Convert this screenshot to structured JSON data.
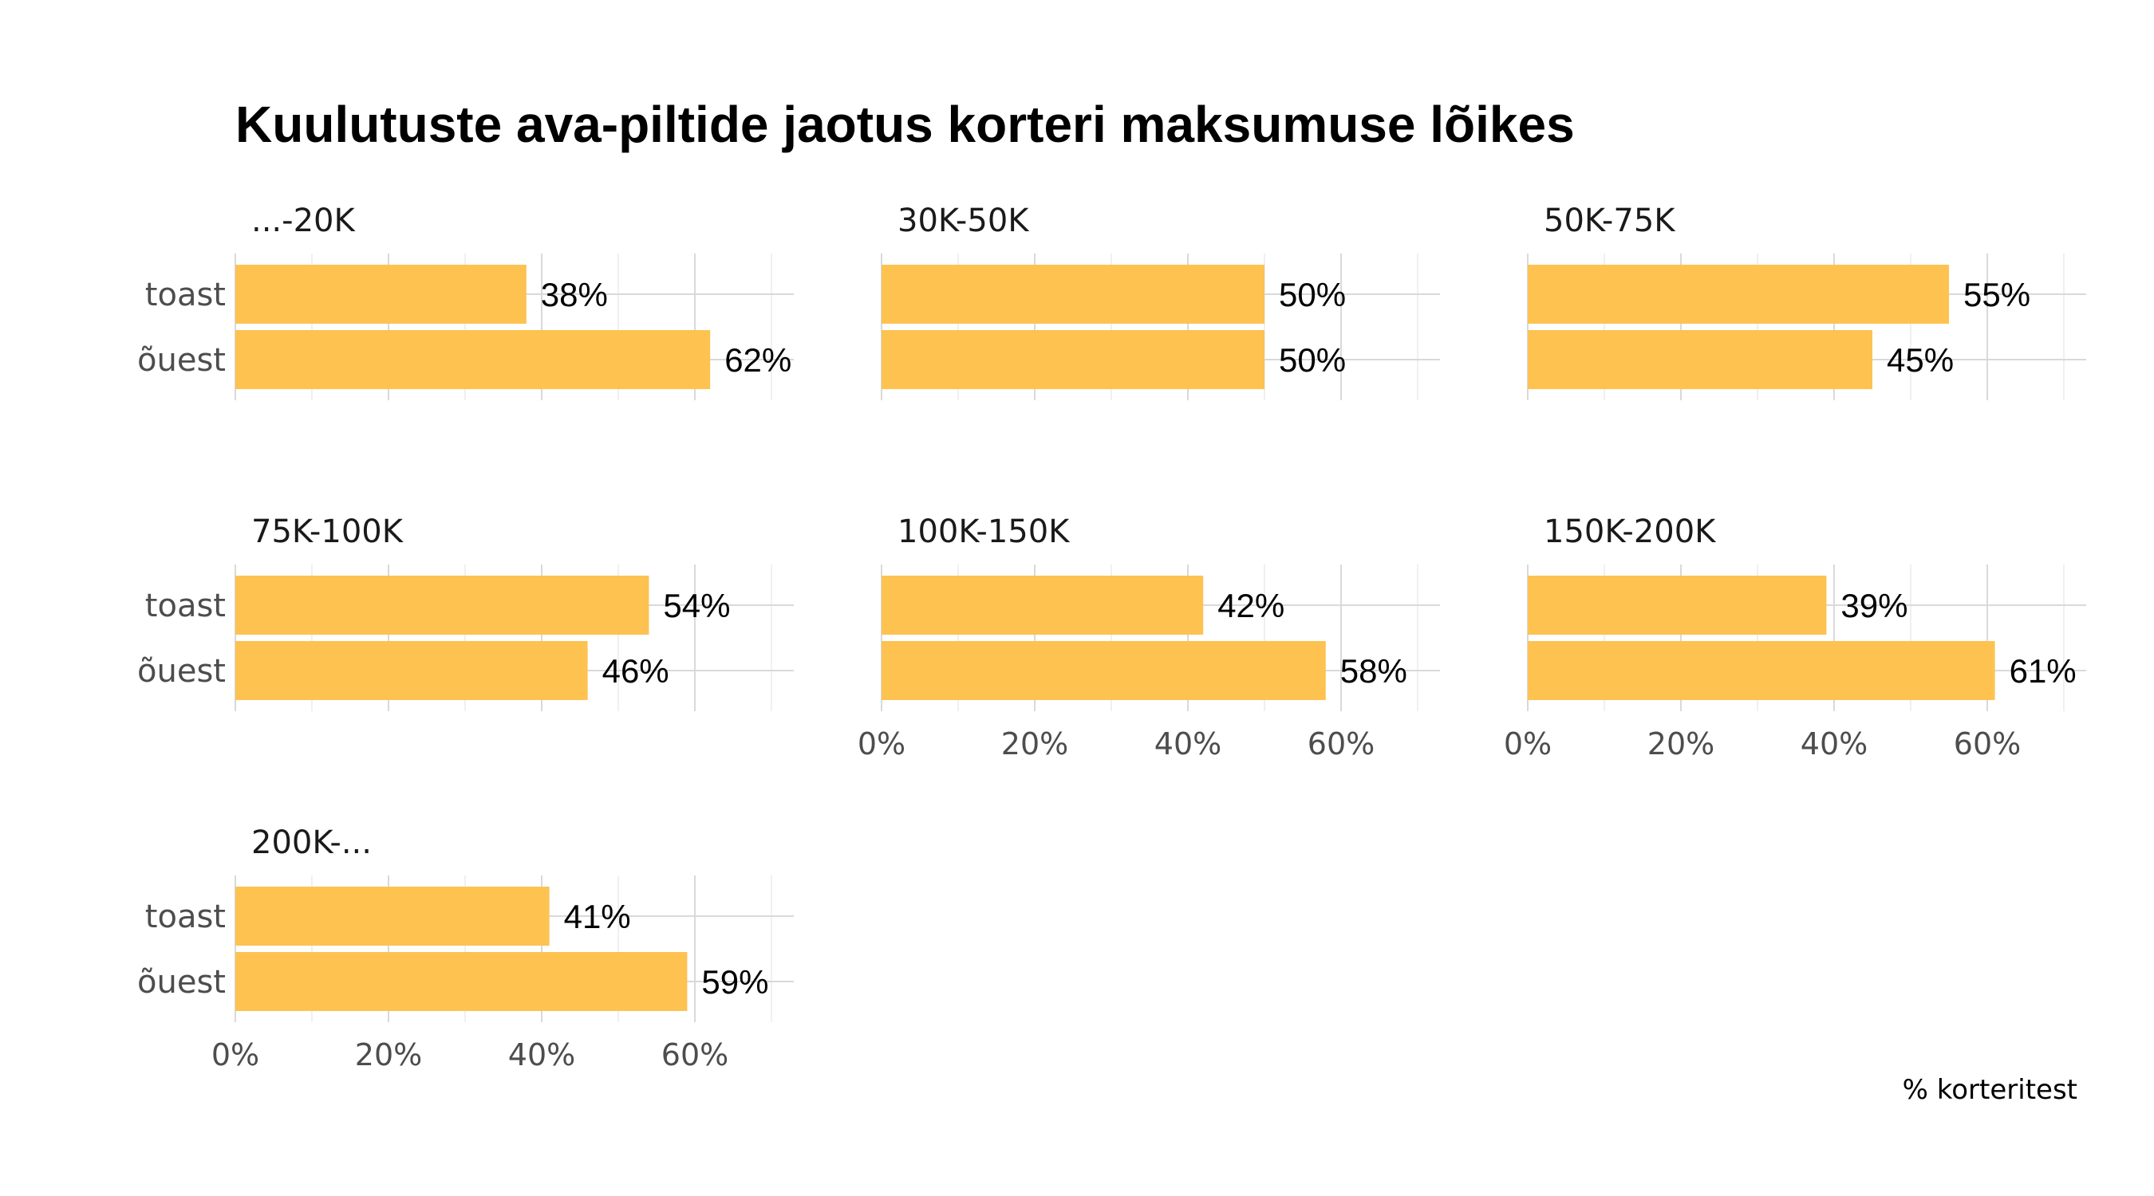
{
  "chart_data": {
    "type": "bar",
    "orientation": "horizontal",
    "title": "Kuulutuste ava-piltide jaotus korteri maksumuse lõikes",
    "caption": "% korteritest",
    "categories": [
      "toast",
      "õuest"
    ],
    "bar_color": "#FDC250",
    "xlim": [
      0,
      70
    ],
    "x_ticks": [
      0,
      20,
      40,
      60
    ],
    "x_tick_labels": [
      "0%",
      "20%",
      "40%",
      "60%"
    ],
    "grid": true,
    "panels": [
      {
        "label": "...-20K",
        "values": [
          38,
          62
        ],
        "value_labels": [
          "38%",
          "62%"
        ]
      },
      {
        "label": "30K-50K",
        "values": [
          50,
          50
        ],
        "value_labels": [
          "50%",
          "50%"
        ]
      },
      {
        "label": "50K-75K",
        "values": [
          55,
          45
        ],
        "value_labels": [
          "55%",
          "45%"
        ]
      },
      {
        "label": "75K-100K",
        "values": [
          54,
          46
        ],
        "value_labels": [
          "54%",
          "46%"
        ]
      },
      {
        "label": "100K-150K",
        "values": [
          42,
          58
        ],
        "value_labels": [
          "42%",
          "58%"
        ]
      },
      {
        "label": "150K-200K",
        "values": [
          39,
          61
        ],
        "value_labels": [
          "39%",
          "61%"
        ]
      },
      {
        "label": "200K-...",
        "values": [
          41,
          59
        ],
        "value_labels": [
          "41%",
          "59%"
        ]
      }
    ]
  }
}
